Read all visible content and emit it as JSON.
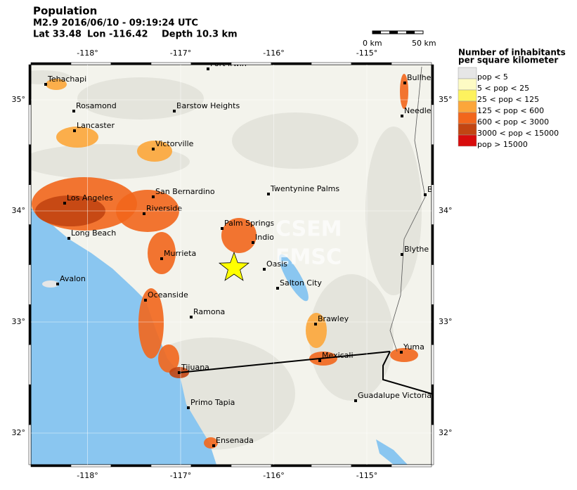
{
  "header": {
    "title": "Population",
    "event": "M2.9  2016/06/10 - 09:19:24 UTC",
    "lat": "Lat 33.48",
    "lon": "Lon -116.42",
    "depth": "Depth  10.3 km"
  },
  "scale_bar": {
    "start": "0 km",
    "end": "50 km"
  },
  "map": {
    "lon_ticks": [
      {
        "value": -118,
        "label": "-118°"
      },
      {
        "value": -117,
        "label": "-117°"
      },
      {
        "value": -116,
        "label": "-116°"
      },
      {
        "value": -115,
        "label": "-115°"
      }
    ],
    "lat_ticks": [
      {
        "value": 35,
        "label": "35°"
      },
      {
        "value": 34,
        "label": "34°"
      },
      {
        "value": 33,
        "label": "33°"
      },
      {
        "value": 32,
        "label": "32°"
      }
    ],
    "cities": [
      "Fort Irwin",
      "Tehachapi",
      "Bullhe",
      "Rosamond",
      "Barstow Heights",
      "Needle",
      "Lancaster",
      "Victorville",
      "San Bernardino",
      "Twentynine Palms",
      "B",
      "Los Angeles",
      "Riverside",
      "Palm Springs",
      "Indio",
      "Long Beach",
      "Blythe",
      "Murrieta",
      "Oasis",
      "Avalon",
      "Salton City",
      "Oceanside",
      "Ramona",
      "Brawley",
      "Yuma",
      "Mexicali",
      "Tijuana",
      "Guadalupe Victoria",
      "Primo Tapia",
      "Ensenada"
    ],
    "watermark": [
      "CSEM",
      "EMSC"
    ]
  },
  "legend": {
    "title": [
      "Number of inhabitants",
      "per square kilometer"
    ],
    "entries": [
      {
        "label": "pop < 5",
        "color": "#e6e6e6"
      },
      {
        "label": "5 < pop < 25",
        "color": "#fdfbc4"
      },
      {
        "label": "25 < pop < 125",
        "color": "#fdf25e"
      },
      {
        "label": "125 < pop < 600",
        "color": "#fca63a"
      },
      {
        "label": "600 < pop < 3000",
        "color": "#f2661c"
      },
      {
        "label": "3000 < pop < 15000",
        "color": "#c24512"
      },
      {
        "label": "pop > 15000",
        "color": "#d80c0c"
      }
    ]
  }
}
